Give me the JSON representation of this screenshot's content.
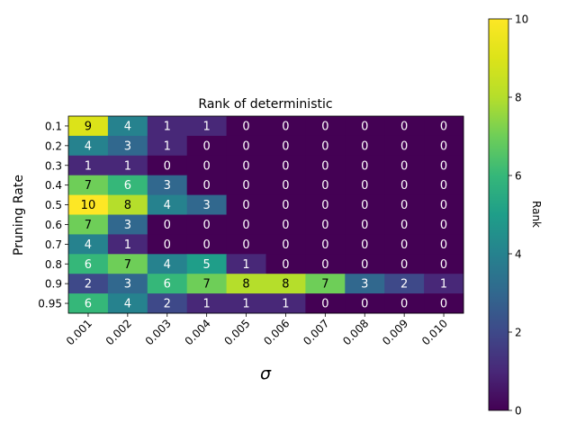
{
  "chart_data": {
    "type": "heatmap",
    "title": "Rank of deterministic",
    "xlabel": "σ",
    "ylabel": "Pruning Rate",
    "x_categories": [
      "0.001",
      "0.002",
      "0.003",
      "0.004",
      "0.005",
      "0.006",
      "0.007",
      "0.008",
      "0.009",
      "0.010"
    ],
    "y_categories": [
      "0.1",
      "0.2",
      "0.3",
      "0.4",
      "0.5",
      "0.6",
      "0.7",
      "0.8",
      "0.9",
      "0.95"
    ],
    "values": [
      [
        9,
        4,
        1,
        1,
        0,
        0,
        0,
        0,
        0,
        0
      ],
      [
        4,
        3,
        1,
        0,
        0,
        0,
        0,
        0,
        0,
        0
      ],
      [
        1,
        1,
        0,
        0,
        0,
        0,
        0,
        0,
        0,
        0
      ],
      [
        7,
        6,
        3,
        0,
        0,
        0,
        0,
        0,
        0,
        0
      ],
      [
        10,
        8,
        4,
        3,
        0,
        0,
        0,
        0,
        0,
        0
      ],
      [
        7,
        3,
        0,
        0,
        0,
        0,
        0,
        0,
        0,
        0
      ],
      [
        4,
        1,
        0,
        0,
        0,
        0,
        0,
        0,
        0,
        0
      ],
      [
        6,
        7,
        4,
        5,
        1,
        0,
        0,
        0,
        0,
        0
      ],
      [
        2,
        3,
        6,
        7,
        8,
        8,
        7,
        3,
        2,
        1
      ],
      [
        6,
        4,
        2,
        1,
        1,
        1,
        0,
        0,
        0,
        0
      ]
    ],
    "colorbar": {
      "label": "Rank",
      "range": [
        0,
        10
      ],
      "ticks": [
        "0",
        "2",
        "4",
        "6",
        "8",
        "10"
      ]
    },
    "colormap": "viridis",
    "grid": false,
    "legend": "colorbar-right"
  }
}
